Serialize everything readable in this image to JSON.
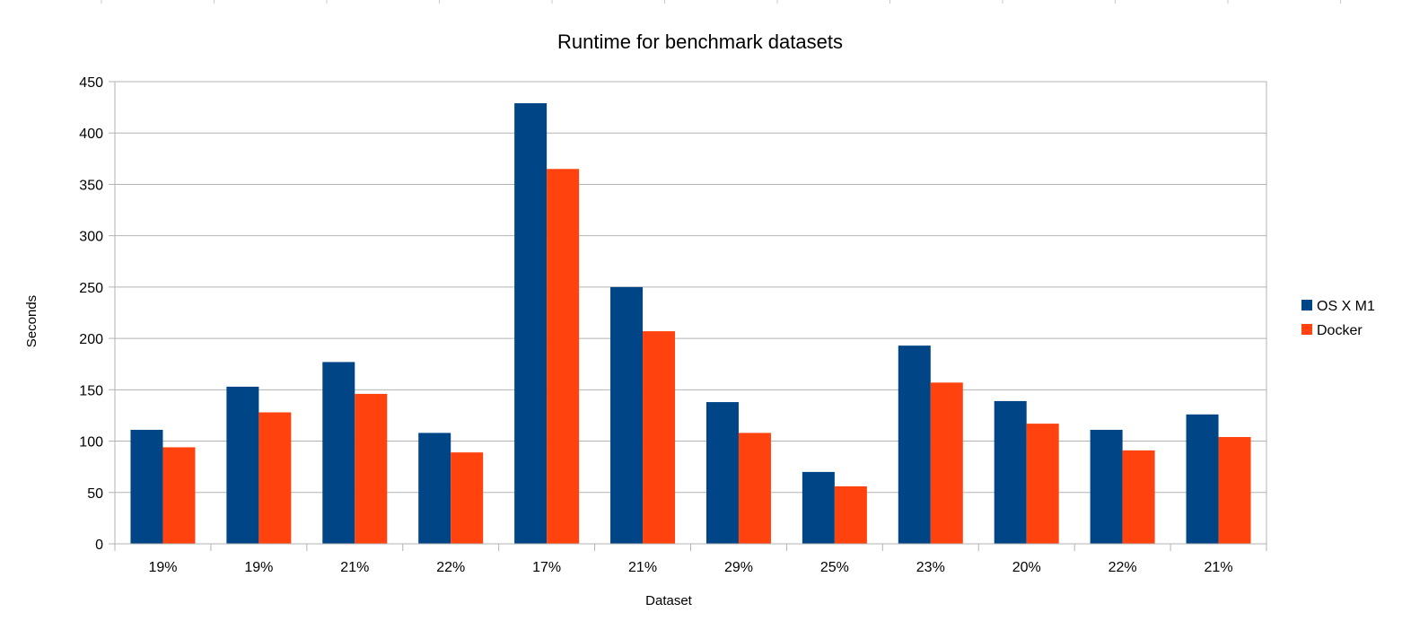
{
  "chart_data": {
    "type": "bar",
    "title": "Runtime for benchmark datasets",
    "xlabel": "Dataset",
    "ylabel": "Seconds",
    "categories": [
      "19%",
      "19%",
      "21%",
      "22%",
      "17%",
      "21%",
      "29%",
      "25%",
      "23%",
      "20%",
      "22%",
      "21%"
    ],
    "yticks": [
      "0",
      "50",
      "100",
      "150",
      "200",
      "250",
      "300",
      "350",
      "400",
      "450"
    ],
    "ylim": [
      0,
      450
    ],
    "grid": true,
    "legend_position": "right",
    "series": [
      {
        "name": "OS X M1",
        "color": "#004586",
        "values": [
          111,
          153,
          177,
          108,
          429,
          250,
          138,
          70,
          193,
          139,
          111,
          126
        ]
      },
      {
        "name": "Docker",
        "color": "#ff420e",
        "values": [
          94,
          128,
          146,
          89,
          365,
          207,
          108,
          56,
          157,
          117,
          91,
          104
        ]
      }
    ]
  }
}
